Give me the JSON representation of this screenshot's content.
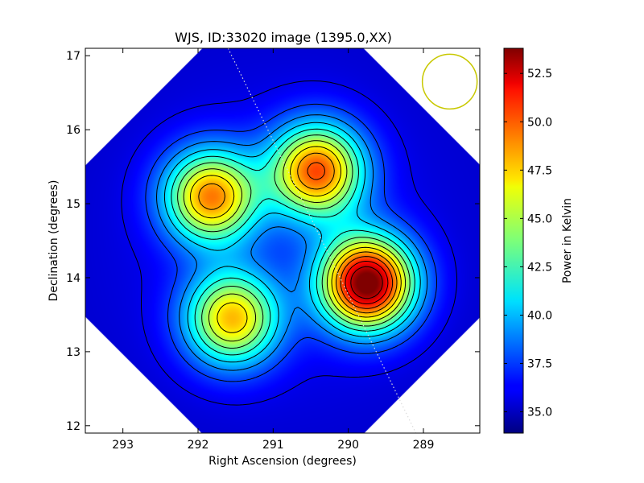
{
  "chart_data": {
    "type": "heatmap",
    "title": "WJS, ID:33020 image (1395.0,XX)",
    "xlabel": "Right Ascension (degrees)",
    "ylabel": "Declination (degrees)",
    "xlim": [
      293.5,
      288.25
    ],
    "ylim": [
      11.9,
      17.1
    ],
    "x_ticks": [
      {
        "value": 293,
        "label": "293"
      },
      {
        "value": 292,
        "label": "292"
      },
      {
        "value": 291,
        "label": "291"
      },
      {
        "value": 290,
        "label": "290"
      },
      {
        "value": 289,
        "label": "289"
      }
    ],
    "y_ticks": [
      {
        "value": 12,
        "label": "12"
      },
      {
        "value": 13,
        "label": "13"
      },
      {
        "value": 14,
        "label": "14"
      },
      {
        "value": 15,
        "label": "15"
      },
      {
        "value": 16,
        "label": "16"
      },
      {
        "value": 17,
        "label": "17"
      }
    ],
    "colorbar": {
      "label": "Power in Kelvin",
      "range": [
        33.9,
        53.8
      ],
      "colormap": "jet",
      "ticks": [
        {
          "value": 35.0,
          "label": "35.0"
        },
        {
          "value": 37.5,
          "label": "37.5"
        },
        {
          "value": 40.0,
          "label": "40.0"
        },
        {
          "value": 42.5,
          "label": "42.5"
        },
        {
          "value": 45.0,
          "label": "45.0"
        },
        {
          "value": 47.5,
          "label": "47.5"
        },
        {
          "value": 50.0,
          "label": "50.0"
        },
        {
          "value": 52.5,
          "label": "52.5"
        }
      ]
    },
    "sources": [
      {
        "ra": 289.75,
        "dec": 13.93,
        "peak": 53.8
      },
      {
        "ra": 290.42,
        "dec": 15.45,
        "peak": 49.0
      },
      {
        "ra": 291.55,
        "dec": 13.45,
        "peak": 46.8
      },
      {
        "ra": 291.83,
        "dec": 15.1,
        "peak": 48.0
      }
    ],
    "beam_circle": {
      "ra": 288.65,
      "dec": 16.65,
      "radius_deg": 0.37,
      "color": "#c8c800"
    },
    "galactic_plane": [
      [
        291.6,
        17.1
      ],
      [
        289.1,
        11.9
      ]
    ],
    "contour_color": "#000000",
    "grid": false,
    "colors": {
      "mask": "#ffffff",
      "frame": "#000000",
      "plane_line": "#dcdcdc"
    }
  }
}
